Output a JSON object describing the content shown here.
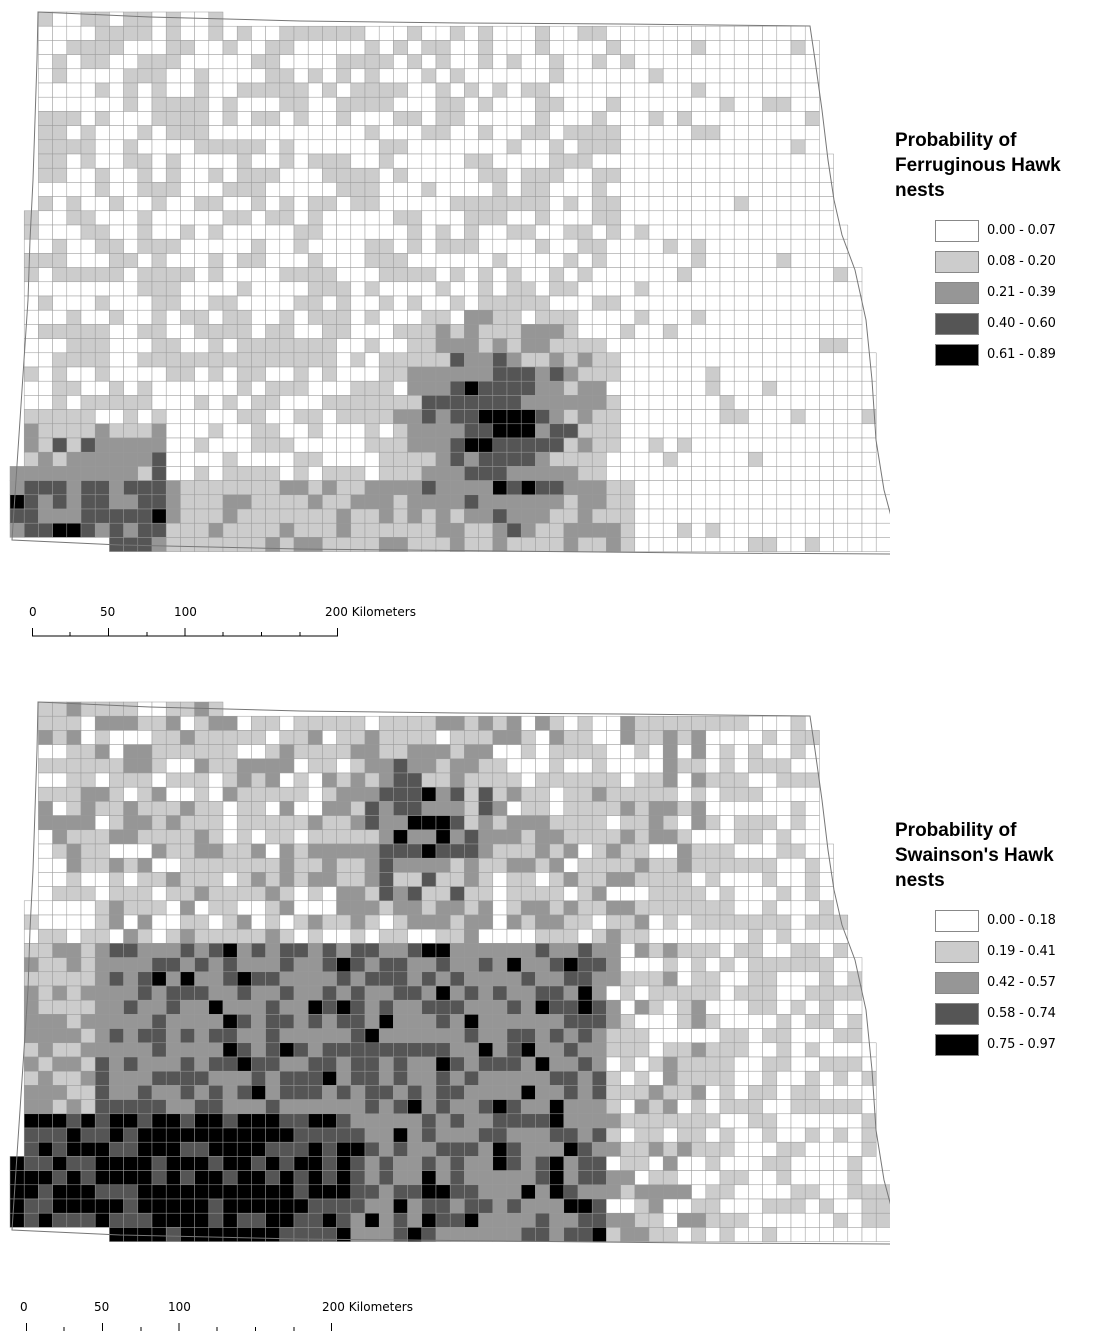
{
  "maps": [
    {
      "id": "ferruginous",
      "legend_title": [
        "Probability of",
        "Ferruginous Hawk",
        "nests"
      ],
      "classes": [
        {
          "label": "0.00 - 0.07",
          "color": "#ffffff"
        },
        {
          "label": "0.08 - 0.20",
          "color": "#cccccc"
        },
        {
          "label": "0.21 - 0.39",
          "color": "#969696"
        },
        {
          "label": "0.40 - 0.60",
          "color": "#555555"
        },
        {
          "label": "0.61 - 0.89",
          "color": "#000000"
        }
      ],
      "scale": {
        "ticks": [
          "0",
          "50",
          "100",
          "200 Kilometers"
        ]
      }
    },
    {
      "id": "swainsons",
      "legend_title": [
        "Probability of",
        "Swainson's Hawk",
        "nests"
      ],
      "classes": [
        {
          "label": "0.00 - 0.18",
          "color": "#ffffff"
        },
        {
          "label": "0.19 - 0.41",
          "color": "#cccccc"
        },
        {
          "label": "0.42 - 0.57",
          "color": "#969696"
        },
        {
          "label": "0.58 - 0.74",
          "color": "#555555"
        },
        {
          "label": "0.75 - 0.97",
          "color": "#000000"
        }
      ],
      "scale": {
        "ticks": [
          "0",
          "50",
          "100",
          "200 Kilometers"
        ]
      }
    }
  ]
}
